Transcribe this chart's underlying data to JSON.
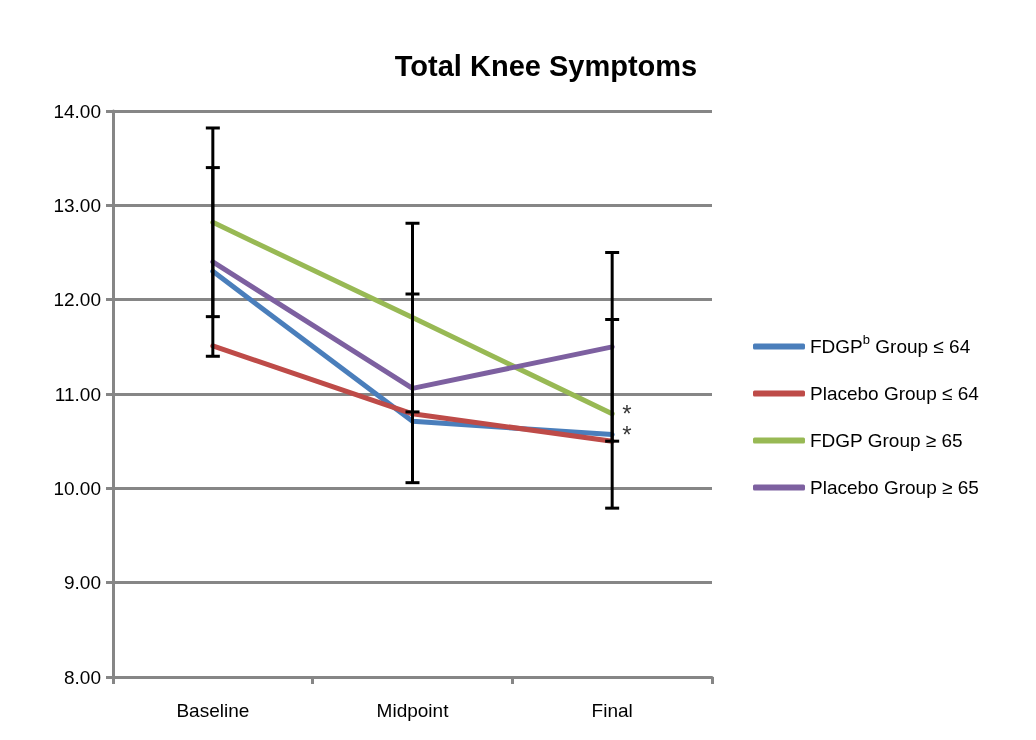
{
  "chart_data": {
    "type": "line",
    "title": "Total Knee Symptoms",
    "categories": [
      "Baseline",
      "Midpoint",
      "Final"
    ],
    "series": [
      {
        "name": "FDGP$^{b}$ Group ≤ 64",
        "color": "#4a7ebb",
        "values": [
          12.3,
          10.71,
          10.57
        ]
      },
      {
        "name": "Placebo Group ≤ 64",
        "color": "#be4b48",
        "values": [
          11.51,
          10.79,
          10.5
        ]
      },
      {
        "name": "FDGP Group ≥ 65",
        "color": "#98b954",
        "values": [
          12.82,
          11.81,
          10.79
        ],
        "errors": [
          1.0,
          1.0,
          1.0
        ]
      },
      {
        "name": "Placebo Group ≥ 65",
        "color": "#7d60a0",
        "values": [
          12.4,
          11.06,
          11.5
        ],
        "errors": [
          1.0,
          1.0,
          1.0
        ]
      }
    ],
    "ylim": [
      8,
      14
    ],
    "yticks": [
      {
        "value": 8,
        "label": "8.00"
      },
      {
        "value": 9,
        "label": "9.00"
      },
      {
        "value": 10,
        "label": "10.00"
      },
      {
        "value": 11,
        "label": "11.00"
      },
      {
        "value": 12,
        "label": "12.00"
      },
      {
        "value": 13,
        "label": "13.00"
      },
      {
        "value": 14,
        "label": "14.00"
      }
    ],
    "grid": "y",
    "legend": "right",
    "marker": "none",
    "line_style": "solid",
    "annotations": [
      {
        "text": "*",
        "x": "Final",
        "y": 10.79
      },
      {
        "text": "*",
        "x": "Final",
        "y": 10.57
      }
    ]
  }
}
